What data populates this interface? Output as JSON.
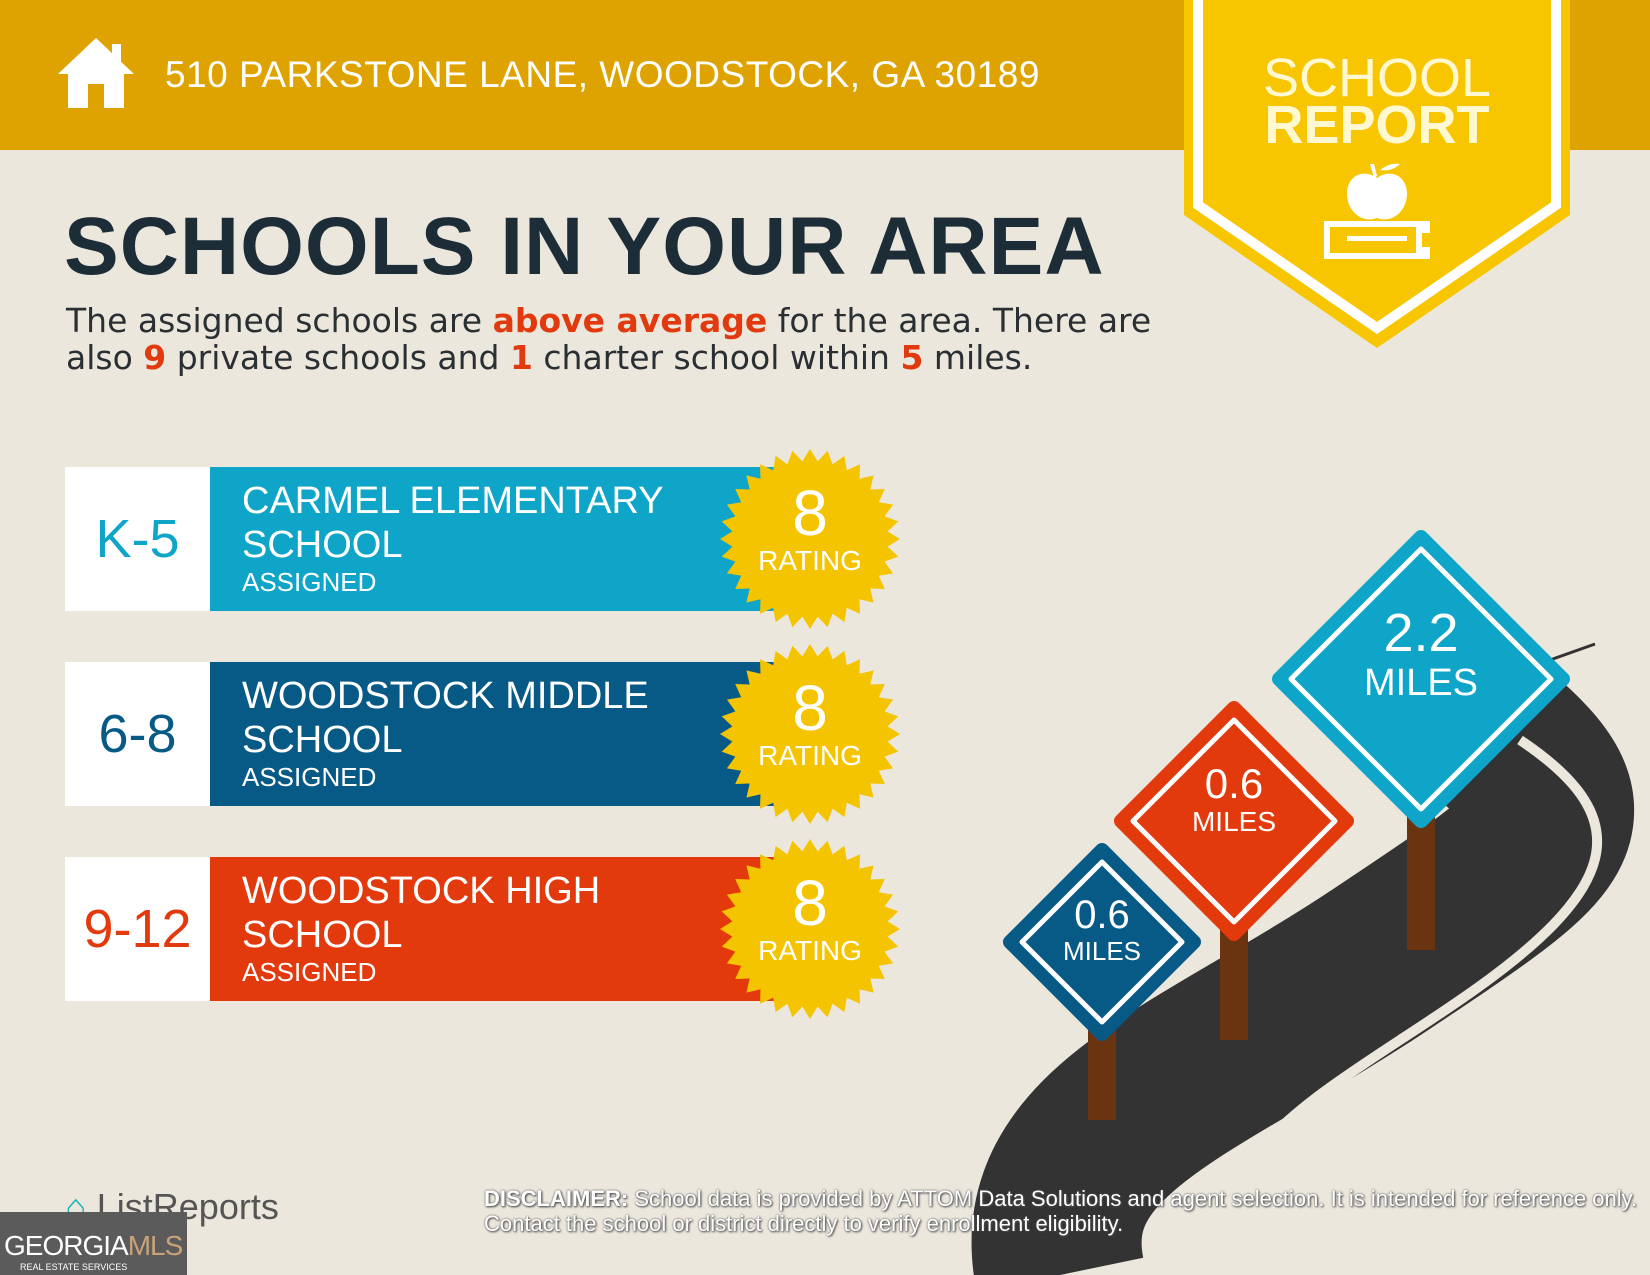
{
  "header": {
    "address": "510 PARKSTONE LANE, WOODSTOCK, GA 30189",
    "icon": "house-icon"
  },
  "badge": {
    "line1": "SCHOOL",
    "line2": "REPORT",
    "icon": "apple-on-book-icon"
  },
  "title": "SCHOOLS IN YOUR AREA",
  "summary": {
    "p1": "The assigned schools are ",
    "highlight": "above average",
    "p2": " for the area. There are also ",
    "private_count": "9",
    "p3": " private schools and ",
    "charter_count": "1",
    "p4": " charter school within ",
    "miles": "5",
    "p5": " miles."
  },
  "schools": [
    {
      "grade": "K-5",
      "name1": "CARMEL ELEMENTARY",
      "name2": "SCHOOL",
      "status": "ASSIGNED",
      "rating": "8",
      "rating_label": "RATING",
      "color": "#0ea5c8"
    },
    {
      "grade": "6-8",
      "name1": "WOODSTOCK MIDDLE",
      "name2": "SCHOOL",
      "status": "ASSIGNED",
      "rating": "8",
      "rating_label": "RATING",
      "color": "#075a86"
    },
    {
      "grade": "9-12",
      "name1": "WOODSTOCK HIGH",
      "name2": "SCHOOL",
      "status": "ASSIGNED",
      "rating": "8",
      "rating_label": "RATING",
      "color": "#e23a0d"
    }
  ],
  "distances": [
    {
      "value": "0.6",
      "unit": "MILES",
      "color": "#075a86"
    },
    {
      "value": "0.6",
      "unit": "MILES",
      "color": "#e23a0d"
    },
    {
      "value": "2.2",
      "unit": "MILES",
      "color": "#0ea5c8"
    }
  ],
  "footer": {
    "brand": "ListReports",
    "mls": "GEORGIA",
    "mls2": "MLS",
    "mls_sub": "REAL ESTATE SERVICES",
    "disclaimer_label": "DISCLAIMER:",
    "disclaimer_text": " School data is provided by ATTOM Data Solutions and agent selection. It is intended for reference only. Contact the school or district directly to verify enrollment eligibility."
  }
}
